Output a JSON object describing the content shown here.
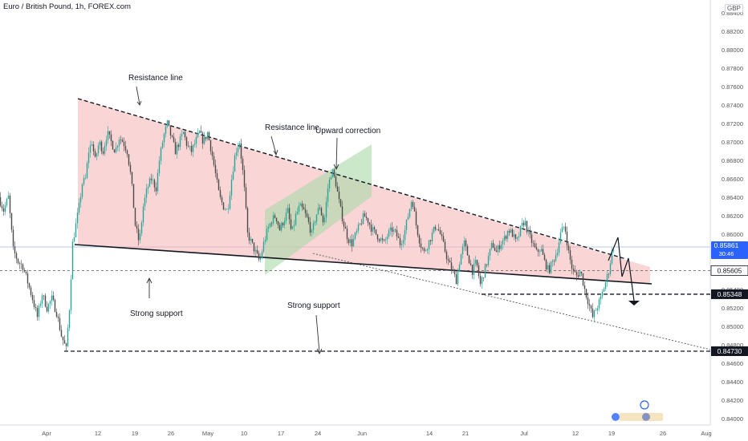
{
  "header": {
    "title": "Euro / British Pound, 1h, FOREX.com",
    "currency": "GBP"
  },
  "chart_data": {
    "type": "candlestick",
    "title": "Euro / British Pound, 1h, FOREX.com",
    "y_ticks": [
      "0.88400",
      "0.88200",
      "0.88000",
      "0.87800",
      "0.87600",
      "0.87400",
      "0.87200",
      "0.87000",
      "0.86800",
      "0.86600",
      "0.86400",
      "0.86200",
      "0.86000",
      "0.85800",
      "0.85400",
      "0.85200",
      "0.85000",
      "0.84800",
      "0.84600",
      "0.84400",
      "0.84200",
      "0.84000"
    ],
    "ylim": [
      0.8393,
      0.8847
    ],
    "x_ticks": [
      "Apr",
      "12",
      "19",
      "26",
      "May",
      "10",
      "17",
      "24",
      "Jun",
      "14",
      "21",
      "Jul",
      "12",
      "19",
      "26",
      "Aug"
    ],
    "price_labels": [
      {
        "text": "0.85861",
        "sub": "30:46",
        "value": 0.85861,
        "kind": "current"
      },
      {
        "text": "0.85605",
        "value": 0.85605,
        "kind": "level"
      },
      {
        "text": "0.85348",
        "value": 0.85348,
        "kind": "level"
      },
      {
        "text": "0.84730",
        "value": 0.8473,
        "kind": "level"
      }
    ],
    "annotations": [
      {
        "text": "Resistance line"
      },
      {
        "text": "Resistance line"
      },
      {
        "text": "Upward correction"
      },
      {
        "text": "Strong support"
      },
      {
        "text": "Strong support"
      }
    ],
    "series_path": [
      [
        -1,
        0.8615
      ],
      [
        0,
        0.864
      ],
      [
        6,
        0.8626
      ],
      [
        12,
        0.864
      ],
      [
        18,
        0.8583
      ],
      [
        24,
        0.857
      ],
      [
        30,
        0.8565
      ],
      [
        36,
        0.8548
      ],
      [
        42,
        0.853
      ],
      [
        48,
        0.851
      ],
      [
        54,
        0.8535
      ],
      [
        60,
        0.852
      ],
      [
        66,
        0.853
      ],
      [
        72,
        0.8515
      ],
      [
        78,
        0.849
      ],
      [
        84,
        0.8475
      ],
      [
        88,
        0.852
      ],
      [
        92,
        0.859
      ],
      [
        96,
        0.861
      ],
      [
        100,
        0.863
      ],
      [
        104,
        0.8655
      ],
      [
        108,
        0.866
      ],
      [
        112,
        0.869
      ],
      [
        116,
        0.87
      ],
      [
        120,
        0.868
      ],
      [
        125,
        0.87
      ],
      [
        130,
        0.869
      ],
      [
        135,
        0.871
      ],
      [
        140,
        0.87
      ],
      [
        145,
        0.869
      ],
      [
        150,
        0.8705
      ],
      [
        155,
        0.87
      ],
      [
        160,
        0.869
      ],
      [
        165,
        0.866
      ],
      [
        170,
        0.861
      ],
      [
        175,
        0.859
      ],
      [
        180,
        0.863
      ],
      [
        185,
        0.865
      ],
      [
        190,
        0.866
      ],
      [
        196,
        0.865
      ],
      [
        200,
        0.868
      ],
      [
        205,
        0.8705
      ],
      [
        210,
        0.872
      ],
      [
        215,
        0.8705
      ],
      [
        220,
        0.869
      ],
      [
        225,
        0.87
      ],
      [
        230,
        0.871
      ],
      [
        235,
        0.8695
      ],
      [
        240,
        0.869
      ],
      [
        245,
        0.87
      ],
      [
        250,
        0.871
      ],
      [
        255,
        0.87
      ],
      [
        260,
        0.871
      ],
      [
        265,
        0.869
      ],
      [
        270,
        0.8665
      ],
      [
        275,
        0.864
      ],
      [
        280,
        0.863
      ],
      [
        285,
        0.8625
      ],
      [
        290,
        0.866
      ],
      [
        295,
        0.869
      ],
      [
        300,
        0.87
      ],
      [
        305,
        0.866
      ],
      [
        310,
        0.86
      ],
      [
        315,
        0.859
      ],
      [
        320,
        0.858
      ],
      [
        325,
        0.857
      ],
      [
        330,
        0.859
      ],
      [
        335,
        0.8605
      ],
      [
        340,
        0.8615
      ],
      [
        345,
        0.862
      ],
      [
        350,
        0.8605
      ],
      [
        355,
        0.8615
      ],
      [
        360,
        0.8625
      ],
      [
        365,
        0.86
      ],
      [
        370,
        0.862
      ],
      [
        375,
        0.863
      ],
      [
        380,
        0.8625
      ],
      [
        385,
        0.8615
      ],
      [
        390,
        0.86
      ],
      [
        395,
        0.862
      ],
      [
        400,
        0.863
      ],
      [
        405,
        0.861
      ],
      [
        410,
        0.865
      ],
      [
        415,
        0.867
      ],
      [
        420,
        0.8655
      ],
      [
        425,
        0.863
      ],
      [
        430,
        0.861
      ],
      [
        435,
        0.8595
      ],
      [
        440,
        0.859
      ],
      [
        445,
        0.86
      ],
      [
        450,
        0.861
      ],
      [
        455,
        0.862
      ],
      [
        460,
        0.8615
      ],
      [
        465,
        0.8605
      ],
      [
        470,
        0.86
      ],
      [
        475,
        0.8595
      ],
      [
        480,
        0.859
      ],
      [
        485,
        0.86
      ],
      [
        490,
        0.8605
      ],
      [
        495,
        0.86
      ],
      [
        500,
        0.859
      ],
      [
        505,
        0.86
      ],
      [
        510,
        0.862
      ],
      [
        515,
        0.864
      ],
      [
        520,
        0.861
      ],
      [
        525,
        0.859
      ],
      [
        530,
        0.858
      ],
      [
        535,
        0.859
      ],
      [
        540,
        0.86
      ],
      [
        545,
        0.861
      ],
      [
        550,
        0.86
      ],
      [
        555,
        0.8585
      ],
      [
        560,
        0.857
      ],
      [
        565,
        0.856
      ],
      [
        570,
        0.855
      ],
      [
        575,
        0.8575
      ],
      [
        580,
        0.859
      ],
      [
        585,
        0.8575
      ],
      [
        590,
        0.856
      ],
      [
        595,
        0.857
      ],
      [
        600,
        0.8545
      ],
      [
        605,
        0.856
      ],
      [
        610,
        0.8575
      ],
      [
        615,
        0.859
      ],
      [
        620,
        0.858
      ],
      [
        625,
        0.859
      ],
      [
        630,
        0.8595
      ],
      [
        635,
        0.8605
      ],
      [
        640,
        0.86
      ],
      [
        645,
        0.859
      ],
      [
        650,
        0.8605
      ],
      [
        655,
        0.8615
      ],
      [
        660,
        0.86
      ],
      [
        665,
        0.859
      ],
      [
        670,
        0.858
      ],
      [
        675,
        0.8585
      ],
      [
        680,
        0.857
      ],
      [
        685,
        0.856
      ],
      [
        690,
        0.857
      ],
      [
        695,
        0.858
      ],
      [
        700,
        0.86
      ],
      [
        705,
        0.861
      ],
      [
        710,
        0.858
      ],
      [
        715,
        0.856
      ],
      [
        720,
        0.8555
      ],
      [
        725,
        0.856
      ],
      [
        730,
        0.854
      ],
      [
        735,
        0.8525
      ],
      [
        740,
        0.851
      ],
      [
        745,
        0.852
      ],
      [
        750,
        0.853
      ],
      [
        755,
        0.8545
      ],
      [
        760,
        0.856
      ],
      [
        765,
        0.8586
      ]
    ]
  }
}
